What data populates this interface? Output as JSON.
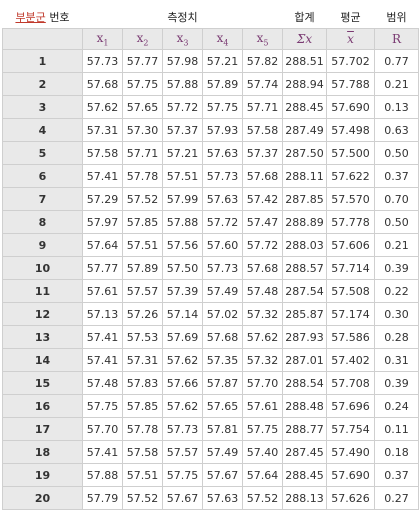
{
  "header": {
    "subgroup_label": "부분군",
    "number_label": "번호",
    "measured_label": "측정치",
    "sum_label": "합계",
    "mean_label": "평균",
    "range_label": "범위"
  },
  "columns": {
    "x1": "x",
    "x1_sub": "1",
    "x2": "x",
    "x2_sub": "2",
    "x3": "x",
    "x3_sub": "3",
    "x4": "x",
    "x4_sub": "4",
    "x5": "x",
    "x5_sub": "5",
    "sum": "Σx",
    "mean": "x",
    "range": "R"
  },
  "rows": [
    [
      "1",
      "57.73",
      "57.77",
      "57.98",
      "57.21",
      "57.82",
      "288.51",
      "57.702",
      "0.77"
    ],
    [
      "2",
      "57.68",
      "57.75",
      "57.88",
      "57.89",
      "57.74",
      "288.94",
      "57.788",
      "0.21"
    ],
    [
      "3",
      "57.62",
      "57.65",
      "57.72",
      "57.75",
      "57.71",
      "288.45",
      "57.690",
      "0.13"
    ],
    [
      "4",
      "57.31",
      "57.30",
      "57.37",
      "57.93",
      "57.58",
      "287.49",
      "57.498",
      "0.63"
    ],
    [
      "5",
      "57.58",
      "57.71",
      "57.21",
      "57.63",
      "57.37",
      "287.50",
      "57.500",
      "0.50"
    ],
    [
      "6",
      "57.41",
      "57.78",
      "57.51",
      "57.73",
      "57.68",
      "288.11",
      "57.622",
      "0.37"
    ],
    [
      "7",
      "57.29",
      "57.52",
      "57.99",
      "57.63",
      "57.42",
      "287.85",
      "57.570",
      "0.70"
    ],
    [
      "8",
      "57.97",
      "57.85",
      "57.88",
      "57.72",
      "57.47",
      "288.89",
      "57.778",
      "0.50"
    ],
    [
      "9",
      "57.64",
      "57.51",
      "57.56",
      "57.60",
      "57.72",
      "288.03",
      "57.606",
      "0.21"
    ],
    [
      "10",
      "57.77",
      "57.89",
      "57.50",
      "57.73",
      "57.68",
      "288.57",
      "57.714",
      "0.39"
    ],
    [
      "11",
      "57.61",
      "57.57",
      "57.39",
      "57.49",
      "57.48",
      "287.54",
      "57.508",
      "0.22"
    ],
    [
      "12",
      "57.13",
      "57.26",
      "57.14",
      "57.02",
      "57.32",
      "285.87",
      "57.174",
      "0.30"
    ],
    [
      "13",
      "57.41",
      "57.53",
      "57.69",
      "57.68",
      "57.62",
      "287.93",
      "57.586",
      "0.28"
    ],
    [
      "14",
      "57.41",
      "57.31",
      "57.62",
      "57.35",
      "57.32",
      "287.01",
      "57.402",
      "0.31"
    ],
    [
      "15",
      "57.48",
      "57.83",
      "57.66",
      "57.87",
      "57.70",
      "288.54",
      "57.708",
      "0.39"
    ],
    [
      "16",
      "57.75",
      "57.85",
      "57.62",
      "57.65",
      "57.61",
      "288.48",
      "57.696",
      "0.24"
    ],
    [
      "17",
      "57.70",
      "57.78",
      "57.73",
      "57.81",
      "57.75",
      "288.77",
      "57.754",
      "0.11"
    ],
    [
      "18",
      "57.41",
      "57.58",
      "57.57",
      "57.49",
      "57.40",
      "287.45",
      "57.490",
      "0.18"
    ],
    [
      "19",
      "57.88",
      "57.51",
      "57.75",
      "57.67",
      "57.64",
      "288.45",
      "57.690",
      "0.37"
    ],
    [
      "20",
      "57.79",
      "57.52",
      "57.67",
      "57.63",
      "57.52",
      "288.13",
      "57.626",
      "0.27"
    ]
  ]
}
